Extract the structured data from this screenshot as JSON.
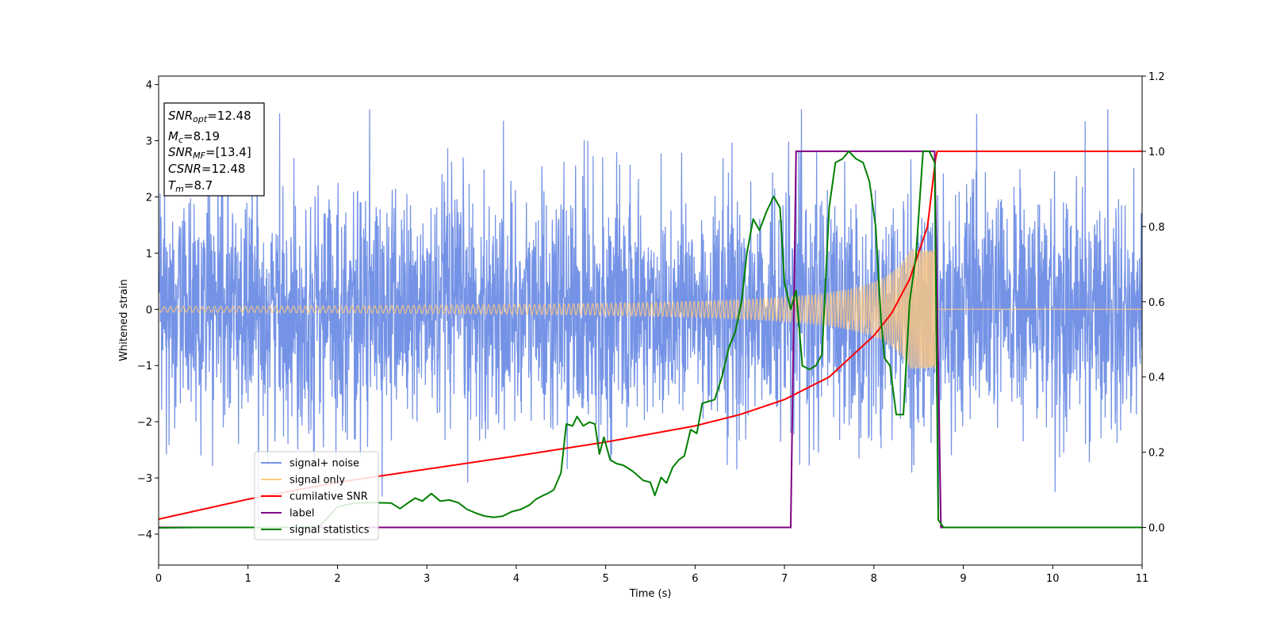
{
  "chart_data": {
    "type": "line",
    "xlabel": "Time (s)",
    "ylabel": "Whitened strain",
    "ylabel_right": "",
    "xlim": [
      0,
      11
    ],
    "ylim": [
      -4.55,
      4.15
    ],
    "ylim_right": [
      -0.1,
      1.2
    ],
    "x_ticks": [
      0,
      1,
      2,
      3,
      4,
      5,
      6,
      7,
      8,
      9,
      10,
      11
    ],
    "y_ticks": [
      -4,
      -3,
      -2,
      -1,
      0,
      1,
      2,
      3,
      4
    ],
    "y_ticks_right": [
      0.0,
      0.2,
      0.4,
      0.6,
      0.8,
      1.0,
      1.2
    ],
    "legend_position": "lower-left",
    "info_box": {
      "snr_opt_label": "SNR",
      "snr_opt_sub": "opt",
      "snr_opt_value": "=12.48",
      "mc_label": "M",
      "mc_sub": "c",
      "mc_value": "=8.19",
      "snr_mf_label": "SNR",
      "snr_mf_sub": "MF",
      "snr_mf_value": "=[13.4]",
      "csnr_label": "CSNR",
      "csnr_value": "=12.48",
      "tm_label": "T",
      "tm_sub": "m",
      "tm_value": "=8.7"
    },
    "series": [
      {
        "name": "signal+ noise",
        "color": "#7593e6",
        "axis": "left",
        "kind": "gaussian-noise-plus-chirp",
        "noise_std": 1.05,
        "y_range_observed": [
          -4.15,
          3.55
        ]
      },
      {
        "name": "signal only",
        "color": "#ffc880",
        "axis": "left",
        "kind": "chirp",
        "t_merger": 8.7,
        "amplitude_start": 0.05,
        "amplitude_at_merger": 1.05,
        "amplitude_after": 0.0
      },
      {
        "name": "cumilative SNR",
        "color": "#ff0000",
        "axis": "right",
        "x": [
          0,
          1,
          2,
          3,
          4,
          5,
          6,
          6.5,
          7,
          7.5,
          8,
          8.2,
          8.4,
          8.6,
          8.7,
          11
        ],
        "y": [
          0.022,
          0.075,
          0.12,
          0.155,
          0.19,
          0.227,
          0.27,
          0.3,
          0.34,
          0.4,
          0.51,
          0.57,
          0.66,
          0.8,
          1.0,
          1.0
        ]
      },
      {
        "name": "label",
        "color": "#800080",
        "axis": "right",
        "x": [
          0,
          7.07,
          7.13,
          8.68,
          8.75,
          11
        ],
        "y": [
          0,
          0,
          1,
          1,
          0,
          0
        ]
      },
      {
        "name": "signal statistics",
        "color": "#008000",
        "axis": "right",
        "x": [
          0,
          0.5,
          1.0,
          1.5,
          1.8,
          2.0,
          2.2,
          2.4,
          2.6,
          2.7,
          2.8,
          2.87,
          2.95,
          3.05,
          3.15,
          3.25,
          3.35,
          3.45,
          3.55,
          3.65,
          3.75,
          3.85,
          3.95,
          4.05,
          4.15,
          4.22,
          4.3,
          4.35,
          4.42,
          4.5,
          4.56,
          4.63,
          4.68,
          4.75,
          4.82,
          4.88,
          4.93,
          4.98,
          5.05,
          5.12,
          5.2,
          5.3,
          5.35,
          5.42,
          5.5,
          5.55,
          5.62,
          5.68,
          5.75,
          5.82,
          5.88,
          5.95,
          6.02,
          6.08,
          6.15,
          6.22,
          6.3,
          6.38,
          6.45,
          6.52,
          6.58,
          6.65,
          6.72,
          6.8,
          6.88,
          6.95,
          7.0,
          7.07,
          7.13,
          7.2,
          7.28,
          7.35,
          7.42,
          7.5,
          7.57,
          7.65,
          7.72,
          7.8,
          7.88,
          7.95,
          8.02,
          8.08,
          8.12,
          8.18,
          8.25,
          8.33,
          8.4,
          8.47,
          8.55,
          8.62,
          8.68,
          8.72,
          8.78,
          9.0,
          9.5,
          10.0,
          10.5,
          11.0
        ],
        "y": [
          -0.001,
          0.0,
          0.0,
          0.0,
          0.003,
          0.055,
          0.065,
          0.066,
          0.065,
          0.05,
          0.067,
          0.078,
          0.07,
          0.09,
          0.07,
          0.073,
          0.066,
          0.048,
          0.038,
          0.03,
          0.027,
          0.03,
          0.042,
          0.048,
          0.06,
          0.075,
          0.085,
          0.09,
          0.1,
          0.145,
          0.275,
          0.27,
          0.295,
          0.27,
          0.28,
          0.275,
          0.195,
          0.24,
          0.18,
          0.17,
          0.165,
          0.15,
          0.14,
          0.125,
          0.12,
          0.085,
          0.133,
          0.118,
          0.16,
          0.18,
          0.19,
          0.26,
          0.25,
          0.33,
          0.335,
          0.34,
          0.4,
          0.48,
          0.52,
          0.6,
          0.73,
          0.82,
          0.79,
          0.84,
          0.88,
          0.85,
          0.65,
          0.58,
          0.63,
          0.43,
          0.42,
          0.43,
          0.46,
          0.85,
          0.97,
          0.98,
          1.0,
          0.98,
          0.97,
          0.92,
          0.8,
          0.55,
          0.45,
          0.43,
          0.3,
          0.3,
          0.6,
          0.72,
          1.0,
          1.0,
          0.97,
          0.02,
          0.0,
          0.0,
          0.0,
          0.0,
          0.0,
          0.0
        ]
      }
    ]
  }
}
